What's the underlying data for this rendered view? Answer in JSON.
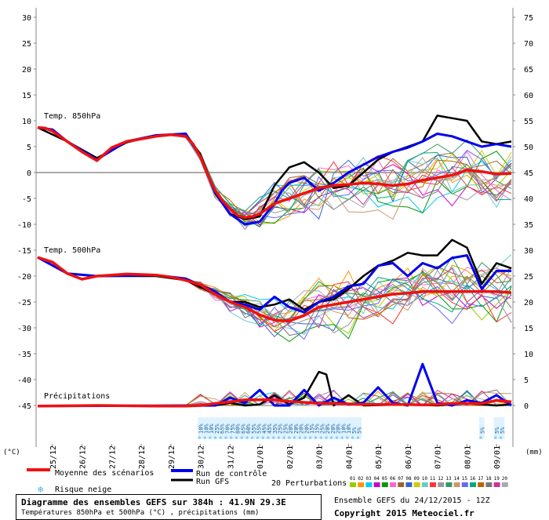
{
  "chart_data": {
    "type": "line",
    "left_axis": {
      "label": "(°C)",
      "ticks": [
        30,
        25,
        20,
        15,
        10,
        5,
        0,
        -5,
        -10,
        -15,
        -20,
        -25,
        -30,
        -35,
        -40,
        -45
      ]
    },
    "right_axis": {
      "label": "(mm)",
      "ticks": [
        75,
        70,
        65,
        60,
        55,
        50,
        45,
        40,
        35,
        30,
        25,
        20,
        15,
        10,
        5,
        0
      ]
    },
    "x_labels": [
      "25/12",
      "26/12",
      "27/12",
      "28/12",
      "29/12",
      "30/12",
      "31/12",
      "01/01",
      "02/01",
      "03/01",
      "04/01",
      "05/01",
      "06/01",
      "07/01",
      "08/01",
      "09/01"
    ],
    "x_hours": [
      0,
      384
    ],
    "panel_labels": {
      "t850": "Temp. 850hPa",
      "t500": "Temp. 500hPa",
      "precip": "Précipitations"
    },
    "legend": {
      "mean": "Moyenne des scénarios",
      "control": "Run de contrôle",
      "gfs": "Run GFS",
      "perturbations": "20 Perturbations",
      "snow": "Risque neige"
    },
    "perturbation_ids": [
      "01",
      "02",
      "03",
      "04",
      "05",
      "06",
      "07",
      "08",
      "09",
      "10",
      "11",
      "12",
      "13",
      "14",
      "15",
      "16",
      "17",
      "18",
      "19",
      "20"
    ],
    "perturbation_colors": [
      "#99cc00",
      "#ff9900",
      "#00ccff",
      "#cc00cc",
      "#009900",
      "#ff66cc",
      "#996633",
      "#3366cc",
      "#cccc00",
      "#66cccc",
      "#ff3333",
      "#999999",
      "#339966",
      "#cc9966",
      "#6666ff",
      "#00aa77",
      "#bb6600",
      "#777777",
      "#cc3399",
      "#aaaaaa"
    ],
    "colors": {
      "mean": "#ee1111",
      "control": "#0000ee",
      "gfs": "#000000",
      "snow": "#4fb3e6",
      "grid_zero": "#aaaaaa"
    },
    "snow_risk": [
      {
        "day": "29/12",
        "pct": "10%"
      },
      {
        "day": "29/12",
        "pct": "10%"
      },
      {
        "day": "29/12",
        "pct": "10%"
      },
      {
        "day": "30/12",
        "pct": "25%"
      },
      {
        "day": "30/12",
        "pct": "65%"
      },
      {
        "day": "30/12",
        "pct": "70%"
      },
      {
        "day": "30/12",
        "pct": "75%"
      },
      {
        "day": "31/12",
        "pct": "80%"
      },
      {
        "day": "31/12",
        "pct": "65%"
      },
      {
        "day": "31/12",
        "pct": "60%"
      },
      {
        "day": "31/12",
        "pct": "55%"
      },
      {
        "day": "01/01",
        "pct": "55%"
      },
      {
        "day": "01/01",
        "pct": "45%"
      },
      {
        "day": "01/01",
        "pct": "45%"
      },
      {
        "day": "01/01",
        "pct": "35%"
      },
      {
        "day": "02/01",
        "pct": "25%"
      },
      {
        "day": "02/01",
        "pct": "25%"
      },
      {
        "day": "02/01",
        "pct": "20%"
      },
      {
        "day": "02/01",
        "pct": "20%"
      },
      {
        "day": "03/01",
        "pct": "20%"
      },
      {
        "day": "03/01",
        "pct": "20%"
      },
      {
        "day": "03/01",
        "pct": "15%"
      },
      {
        "day": "03/01",
        "pct": "15%"
      },
      {
        "day": "04/01",
        "pct": "25%"
      },
      {
        "day": "04/01",
        "pct": "20%"
      },
      {
        "day": "04/01",
        "pct": "20%"
      },
      {
        "day": "04/01",
        "pct": "20%"
      },
      {
        "day": "05/01",
        "pct": "10%"
      },
      {
        "day": "05/01",
        "pct": "10%"
      },
      {
        "day": "05/01",
        "pct": "5%"
      },
      {
        "day": "05/01",
        "pct": "5%"
      },
      {
        "day": "08/01",
        "pct": "5%"
      },
      {
        "day": "09/01",
        "pct": "5%"
      },
      {
        "day": "09/01",
        "pct": "5%"
      }
    ],
    "series": [
      {
        "name": "Moyenne des scénarios",
        "kind": "t850",
        "points": [
          [
            0,
            8.7
          ],
          [
            6,
            8.6
          ],
          [
            12,
            8.0
          ],
          [
            24,
            6.0
          ],
          [
            36,
            4.0
          ],
          [
            48,
            2.3
          ],
          [
            60,
            4.8
          ],
          [
            72,
            6.0
          ],
          [
            84,
            6.5
          ],
          [
            96,
            7.0
          ],
          [
            108,
            7.3
          ],
          [
            120,
            7.0
          ],
          [
            126,
            5.5
          ],
          [
            132,
            3.0
          ],
          [
            138,
            -0.5
          ],
          [
            144,
            -3.5
          ],
          [
            150,
            -5.5
          ],
          [
            156,
            -7.0
          ],
          [
            162,
            -8.3
          ],
          [
            168,
            -8.7
          ],
          [
            174,
            -8.5
          ],
          [
            180,
            -8.0
          ],
          [
            186,
            -7.0
          ],
          [
            192,
            -6.0
          ],
          [
            204,
            -5.0
          ],
          [
            216,
            -4.0
          ],
          [
            228,
            -3.0
          ],
          [
            240,
            -2.5
          ],
          [
            252,
            -2.3
          ],
          [
            264,
            -2.0
          ],
          [
            276,
            -2.2
          ],
          [
            288,
            -2.5
          ],
          [
            300,
            -2.2
          ],
          [
            312,
            -1.5
          ],
          [
            324,
            -1.0
          ],
          [
            336,
            -0.5
          ],
          [
            348,
            0.5
          ],
          [
            360,
            0.2
          ],
          [
            372,
            -0.3
          ],
          [
            384,
            -0.2
          ]
        ]
      },
      {
        "name": "Moyenne des scénarios",
        "kind": "t500",
        "points": [
          [
            0,
            -16.4
          ],
          [
            12,
            -17.3
          ],
          [
            24,
            -19.5
          ],
          [
            36,
            -20.6
          ],
          [
            48,
            -20.0
          ],
          [
            60,
            -19.8
          ],
          [
            72,
            -19.6
          ],
          [
            84,
            -19.7
          ],
          [
            96,
            -19.8
          ],
          [
            108,
            -20.2
          ],
          [
            120,
            -20.8
          ],
          [
            132,
            -21.7
          ],
          [
            144,
            -23.5
          ],
          [
            156,
            -25.0
          ],
          [
            168,
            -26.0
          ],
          [
            180,
            -27.5
          ],
          [
            192,
            -28.5
          ],
          [
            204,
            -28.7
          ],
          [
            216,
            -27.6
          ],
          [
            228,
            -26.0
          ],
          [
            240,
            -25.5
          ],
          [
            252,
            -25.0
          ],
          [
            264,
            -24.5
          ],
          [
            276,
            -24.0
          ],
          [
            288,
            -23.5
          ],
          [
            300,
            -23.3
          ],
          [
            312,
            -23.0
          ],
          [
            324,
            -23.0
          ],
          [
            336,
            -23.0
          ],
          [
            348,
            -23.0
          ],
          [
            360,
            -23.0
          ],
          [
            372,
            -23.0
          ],
          [
            384,
            -23.2
          ]
        ]
      },
      {
        "name": "Moyenne des scénarios",
        "kind": "precip",
        "points": [
          [
            0,
            -45.1
          ],
          [
            48,
            -45.0
          ],
          [
            96,
            -45.1
          ],
          [
            120,
            -45.1
          ],
          [
            132,
            -45.0
          ],
          [
            144,
            -44.6
          ],
          [
            156,
            -44.3
          ],
          [
            168,
            -43.9
          ],
          [
            180,
            -43.9
          ],
          [
            192,
            -43.9
          ],
          [
            204,
            -44.2
          ],
          [
            216,
            -44.4
          ],
          [
            228,
            -44.6
          ],
          [
            240,
            -44.6
          ],
          [
            252,
            -44.7
          ],
          [
            264,
            -44.8
          ],
          [
            276,
            -44.8
          ],
          [
            288,
            -44.8
          ],
          [
            300,
            -44.8
          ],
          [
            312,
            -44.9
          ],
          [
            324,
            -44.8
          ],
          [
            336,
            -44.6
          ],
          [
            348,
            -44.6
          ],
          [
            360,
            -44.6
          ],
          [
            372,
            -44.0
          ],
          [
            384,
            -44.3
          ]
        ]
      },
      {
        "name": "Run de contrôle",
        "kind": "t850",
        "points": [
          [
            0,
            8.7
          ],
          [
            12,
            8.3
          ],
          [
            24,
            6.0
          ],
          [
            48,
            2.5
          ],
          [
            72,
            6.0
          ],
          [
            96,
            7.2
          ],
          [
            120,
            7.5
          ],
          [
            132,
            3.0
          ],
          [
            144,
            -4.0
          ],
          [
            156,
            -8.0
          ],
          [
            168,
            -10.0
          ],
          [
            180,
            -9.5
          ],
          [
            192,
            -6.0
          ],
          [
            198,
            -3.5
          ],
          [
            204,
            -2.0
          ],
          [
            216,
            -1.0
          ],
          [
            228,
            -3.5
          ],
          [
            240,
            -2.0
          ],
          [
            252,
            0.0
          ],
          [
            264,
            1.5
          ],
          [
            276,
            3.0
          ],
          [
            288,
            4.0
          ],
          [
            300,
            4.8
          ],
          [
            312,
            6.0
          ],
          [
            324,
            7.5
          ],
          [
            336,
            7.0
          ],
          [
            348,
            6.0
          ],
          [
            360,
            5.0
          ],
          [
            372,
            5.5
          ],
          [
            384,
            5.0
          ]
        ]
      },
      {
        "name": "Run de contrôle",
        "kind": "t500",
        "points": [
          [
            0,
            -16.4
          ],
          [
            24,
            -19.5
          ],
          [
            48,
            -20.0
          ],
          [
            96,
            -19.8
          ],
          [
            120,
            -20.5
          ],
          [
            144,
            -23.0
          ],
          [
            156,
            -25.0
          ],
          [
            168,
            -25.5
          ],
          [
            180,
            -26.5
          ],
          [
            192,
            -24.0
          ],
          [
            204,
            -26.0
          ],
          [
            216,
            -27.0
          ],
          [
            228,
            -25.0
          ],
          [
            240,
            -24.0
          ],
          [
            252,
            -22.0
          ],
          [
            264,
            -21.5
          ],
          [
            276,
            -18.0
          ],
          [
            288,
            -17.5
          ],
          [
            300,
            -20.0
          ],
          [
            312,
            -17.5
          ],
          [
            324,
            -18.5
          ],
          [
            336,
            -16.5
          ],
          [
            348,
            -16.0
          ],
          [
            360,
            -22.5
          ],
          [
            372,
            -19.0
          ],
          [
            384,
            -19.0
          ]
        ]
      },
      {
        "name": "Run de contrôle",
        "kind": "precip",
        "points": [
          [
            0,
            -45.1
          ],
          [
            144,
            -45.0
          ],
          [
            156,
            -43.5
          ],
          [
            168,
            -44.5
          ],
          [
            180,
            -42.0
          ],
          [
            192,
            -45.0
          ],
          [
            204,
            -45.0
          ],
          [
            216,
            -42.0
          ],
          [
            228,
            -45.0
          ],
          [
            240,
            -43.5
          ],
          [
            252,
            -44.8
          ],
          [
            264,
            -44.5
          ],
          [
            276,
            -41.5
          ],
          [
            288,
            -44.5
          ],
          [
            300,
            -45.0
          ],
          [
            312,
            -37.0
          ],
          [
            324,
            -44.5
          ],
          [
            336,
            -45.0
          ],
          [
            348,
            -44.0
          ],
          [
            360,
            -44.5
          ],
          [
            372,
            -43.0
          ],
          [
            384,
            -45.0
          ]
        ]
      },
      {
        "name": "Run GFS",
        "kind": "t850",
        "points": [
          [
            0,
            8.7
          ],
          [
            24,
            6.0
          ],
          [
            48,
            2.8
          ],
          [
            72,
            5.8
          ],
          [
            96,
            7.2
          ],
          [
            120,
            7.5
          ],
          [
            132,
            3.5
          ],
          [
            144,
            -4.0
          ],
          [
            156,
            -8.0
          ],
          [
            168,
            -9.0
          ],
          [
            180,
            -8.5
          ],
          [
            192,
            -2.5
          ],
          [
            204,
            1.0
          ],
          [
            216,
            2.0
          ],
          [
            228,
            0.0
          ],
          [
            240,
            -3.0
          ],
          [
            252,
            -2.5
          ],
          [
            264,
            0.0
          ],
          [
            276,
            2.5
          ],
          [
            288,
            4.0
          ],
          [
            300,
            5.0
          ],
          [
            312,
            6.0
          ],
          [
            324,
            11.0
          ],
          [
            336,
            10.5
          ],
          [
            348,
            10.0
          ],
          [
            360,
            6.0
          ],
          [
            372,
            5.5
          ],
          [
            384,
            6.0
          ]
        ]
      },
      {
        "name": "Run GFS",
        "kind": "t500",
        "points": [
          [
            0,
            -16.4
          ],
          [
            24,
            -19.5
          ],
          [
            48,
            -20.0
          ],
          [
            96,
            -20.0
          ],
          [
            120,
            -20.8
          ],
          [
            144,
            -23.5
          ],
          [
            156,
            -25.0
          ],
          [
            168,
            -25.0
          ],
          [
            180,
            -26.0
          ],
          [
            192,
            -25.5
          ],
          [
            204,
            -24.5
          ],
          [
            216,
            -26.5
          ],
          [
            228,
            -25.0
          ],
          [
            240,
            -24.5
          ],
          [
            252,
            -22.5
          ],
          [
            264,
            -20.0
          ],
          [
            276,
            -18.0
          ],
          [
            288,
            -17.0
          ],
          [
            300,
            -15.5
          ],
          [
            312,
            -16.0
          ],
          [
            324,
            -16.0
          ],
          [
            336,
            -13.0
          ],
          [
            348,
            -14.5
          ],
          [
            360,
            -21.5
          ],
          [
            372,
            -17.5
          ],
          [
            384,
            -18.5
          ]
        ]
      },
      {
        "name": "Run GFS",
        "kind": "precip",
        "points": [
          [
            0,
            -45.1
          ],
          [
            144,
            -45.0
          ],
          [
            156,
            -44.5
          ],
          [
            168,
            -45.0
          ],
          [
            180,
            -44.8
          ],
          [
            192,
            -43.0
          ],
          [
            204,
            -44.8
          ],
          [
            216,
            -43.5
          ],
          [
            228,
            -38.5
          ],
          [
            234,
            -39.0
          ],
          [
            240,
            -45.0
          ],
          [
            252,
            -43.0
          ],
          [
            264,
            -45.0
          ],
          [
            300,
            -44.8
          ],
          [
            324,
            -45.0
          ],
          [
            348,
            -44.6
          ],
          [
            372,
            -45.0
          ],
          [
            384,
            -44.8
          ]
        ]
      }
    ]
  }
}
